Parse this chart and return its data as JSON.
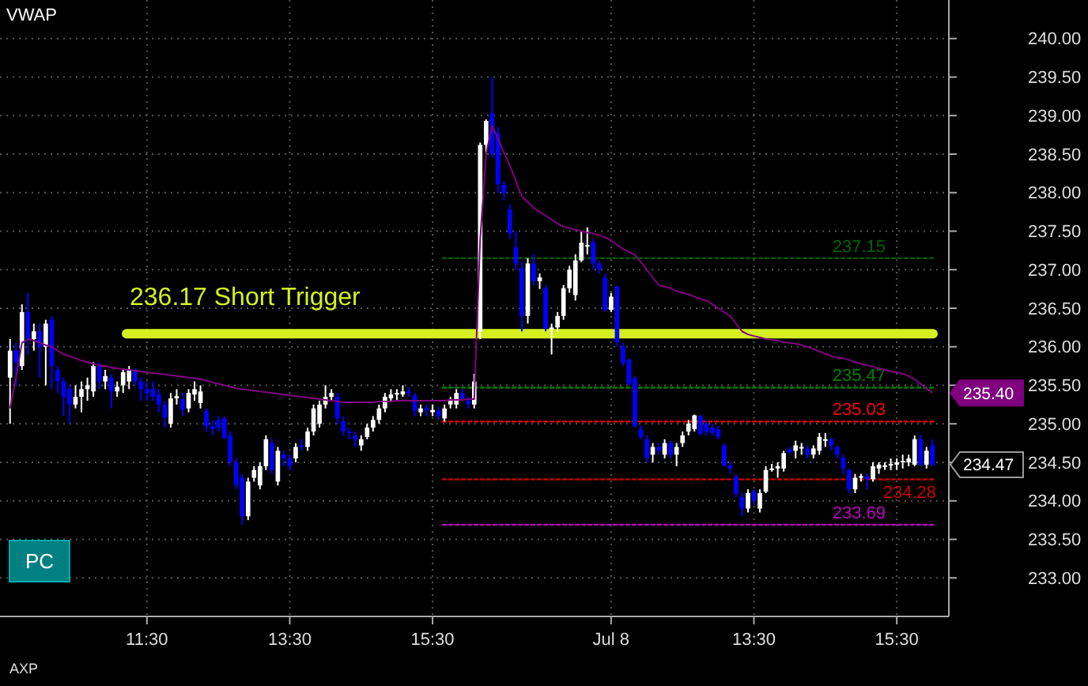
{
  "chart_data": {
    "type": "candlestick",
    "title": "VWAP",
    "categories": [
      null,
      null,
      null,
      null,
      null,
      null,
      null,
      null,
      null,
      null,
      null,
      null,
      null,
      null,
      null,
      null,
      null,
      null,
      null,
      null,
      null,
      null,
      null,
      "11:30",
      null,
      null,
      null,
      null,
      null,
      null,
      null,
      null,
      null,
      null,
      null,
      null,
      null,
      null,
      null,
      null,
      null,
      null,
      null,
      null,
      null,
      null,
      null,
      "13:30",
      null,
      null,
      null,
      null,
      null,
      null,
      null,
      null,
      null,
      null,
      null,
      null,
      null,
      null,
      null,
      null,
      null,
      null,
      null,
      null,
      null,
      null,
      null,
      "15:30",
      null,
      null,
      null,
      null,
      null,
      null,
      null,
      null,
      null,
      null,
      null,
      null,
      null,
      null,
      null,
      null,
      null,
      null,
      null,
      null,
      null,
      null,
      null,
      null,
      null,
      null,
      null,
      null,
      null,
      "Jul 8",
      null,
      null,
      null,
      null,
      null,
      null,
      null,
      null,
      null,
      null,
      null,
      null,
      null,
      null,
      null,
      null,
      null,
      null,
      null,
      null,
      null,
      null,
      null,
      "13:30",
      null,
      null,
      null,
      null,
      null,
      null,
      null,
      null,
      null,
      null,
      null,
      null,
      null,
      null,
      null,
      null,
      null,
      null,
      null,
      null,
      null,
      null,
      null,
      "15:30",
      null,
      null,
      null,
      null,
      null,
      null
    ],
    "ohlc": [
      [
        235.6,
        236.1,
        235.0,
        235.95
      ],
      [
        235.95,
        236.05,
        235.5,
        235.8
      ],
      [
        235.75,
        236.55,
        235.7,
        236.45
      ],
      [
        236.45,
        236.7,
        235.9,
        236.1
      ],
      [
        236.1,
        236.3,
        235.95,
        236.2
      ],
      [
        236.2,
        236.3,
        235.6,
        236.0
      ],
      [
        236.0,
        236.35,
        235.5,
        236.3
      ],
      [
        236.35,
        236.4,
        235.45,
        235.75
      ],
      [
        235.7,
        235.75,
        235.4,
        235.55
      ],
      [
        235.55,
        235.6,
        235.1,
        235.35
      ],
      [
        235.45,
        235.5,
        235.0,
        235.25
      ],
      [
        235.25,
        235.5,
        235.2,
        235.35
      ],
      [
        235.35,
        235.55,
        235.15,
        235.45
      ],
      [
        235.45,
        235.6,
        235.3,
        235.5
      ],
      [
        235.42,
        235.8,
        235.35,
        235.75
      ],
      [
        235.75,
        235.8,
        235.45,
        235.55
      ],
      [
        235.55,
        235.7,
        235.45,
        235.62
      ],
      [
        235.6,
        235.65,
        235.2,
        235.42
      ],
      [
        235.42,
        235.55,
        235.35,
        235.48
      ],
      [
        235.5,
        235.7,
        235.4,
        235.67
      ],
      [
        235.55,
        235.75,
        235.45,
        235.7
      ],
      [
        235.68,
        235.72,
        235.5,
        235.55
      ],
      [
        235.55,
        235.6,
        235.3,
        235.45
      ],
      [
        235.45,
        235.55,
        235.3,
        235.4
      ],
      [
        235.45,
        235.55,
        235.3,
        235.35
      ],
      [
        235.38,
        235.45,
        235.15,
        235.25
      ],
      [
        235.25,
        235.3,
        234.95,
        235.08
      ],
      [
        235.0,
        235.4,
        234.95,
        235.33
      ],
      [
        235.33,
        235.45,
        235.25,
        235.36
      ],
      [
        235.32,
        235.4,
        235.1,
        235.18
      ],
      [
        235.2,
        235.45,
        235.15,
        235.4
      ],
      [
        235.38,
        235.55,
        235.3,
        235.45
      ],
      [
        235.27,
        235.5,
        235.2,
        235.42
      ],
      [
        235.17,
        235.2,
        234.9,
        234.97
      ],
      [
        234.97,
        235.05,
        234.85,
        234.93
      ],
      [
        235.05,
        235.1,
        234.9,
        234.95
      ],
      [
        235.07,
        235.1,
        234.8,
        234.82
      ],
      [
        234.85,
        234.9,
        234.45,
        234.5
      ],
      [
        234.5,
        234.55,
        234.15,
        234.2
      ],
      [
        234.3,
        234.35,
        233.69,
        233.8
      ],
      [
        233.8,
        234.3,
        233.75,
        234.25
      ],
      [
        234.3,
        234.45,
        234.25,
        234.4
      ],
      [
        234.2,
        234.5,
        234.15,
        234.45
      ],
      [
        234.45,
        234.85,
        234.4,
        234.8
      ],
      [
        234.75,
        234.8,
        234.35,
        234.4
      ],
      [
        234.25,
        234.7,
        234.2,
        234.65
      ],
      [
        234.6,
        234.65,
        234.45,
        234.55
      ],
      [
        234.55,
        234.6,
        234.4,
        234.45
      ],
      [
        234.55,
        234.75,
        234.5,
        234.7
      ],
      [
        234.72,
        234.8,
        234.65,
        234.7
      ],
      [
        234.7,
        234.95,
        234.65,
        234.9
      ],
      [
        234.9,
        235.25,
        234.85,
        235.2
      ],
      [
        235.0,
        235.3,
        234.95,
        235.25
      ],
      [
        235.25,
        235.5,
        235.2,
        235.35
      ],
      [
        235.35,
        235.45,
        235.3,
        235.4
      ],
      [
        235.35,
        235.4,
        235.0,
        235.07
      ],
      [
        235.03,
        235.1,
        234.85,
        234.9
      ],
      [
        234.9,
        234.95,
        234.8,
        234.88
      ],
      [
        234.85,
        234.9,
        234.7,
        234.8
      ],
      [
        234.72,
        234.85,
        234.65,
        234.8
      ],
      [
        234.83,
        235.0,
        234.8,
        234.95
      ],
      [
        234.95,
        235.1,
        234.9,
        235.05
      ],
      [
        235.05,
        235.25,
        235.0,
        235.2
      ],
      [
        235.2,
        235.4,
        235.15,
        235.35
      ],
      [
        235.33,
        235.45,
        235.3,
        235.38
      ],
      [
        235.38,
        235.45,
        235.3,
        235.4
      ],
      [
        235.38,
        235.5,
        235.35,
        235.42
      ],
      [
        235.42,
        235.47,
        235.35,
        235.4
      ],
      [
        235.37,
        235.4,
        235.1,
        235.17
      ],
      [
        235.15,
        235.25,
        235.1,
        235.2
      ],
      [
        235.2,
        235.25,
        235.1,
        235.18
      ],
      [
        235.15,
        235.25,
        235.1,
        235.18
      ],
      [
        235.17,
        235.22,
        235.05,
        235.1
      ],
      [
        235.07,
        235.25,
        235.03,
        235.2
      ],
      [
        235.25,
        235.35,
        235.2,
        235.3
      ],
      [
        235.25,
        235.45,
        235.2,
        235.4
      ],
      [
        235.4,
        235.45,
        235.3,
        235.33
      ],
      [
        235.3,
        235.35,
        235.2,
        235.25
      ],
      [
        235.25,
        235.65,
        235.2,
        235.55
      ],
      [
        236.2,
        238.65,
        236.1,
        238.62
      ],
      [
        238.62,
        238.95,
        238.5,
        238.93
      ],
      [
        239.03,
        239.5,
        238.45,
        238.5
      ],
      [
        238.77,
        238.85,
        238.0,
        238.11
      ],
      [
        238.1,
        238.15,
        237.9,
        237.99
      ],
      [
        237.78,
        237.85,
        237.4,
        237.47
      ],
      [
        237.29,
        237.5,
        237.0,
        237.08
      ],
      [
        237.02,
        237.1,
        236.2,
        236.4
      ],
      [
        236.4,
        237.15,
        236.3,
        237.08
      ],
      [
        237.08,
        237.2,
        236.8,
        236.85
      ],
      [
        236.85,
        236.95,
        236.75,
        236.9
      ],
      [
        236.76,
        236.8,
        236.2,
        236.24
      ],
      [
        236.22,
        236.3,
        235.9,
        236.25
      ],
      [
        236.25,
        236.45,
        236.2,
        236.4
      ],
      [
        236.4,
        236.8,
        236.35,
        236.76
      ],
      [
        236.76,
        237.05,
        236.7,
        237.0
      ],
      [
        236.67,
        237.2,
        236.6,
        237.12
      ],
      [
        237.12,
        237.5,
        237.1,
        237.35
      ],
      [
        237.3,
        237.55,
        237.2,
        237.32
      ],
      [
        237.35,
        237.4,
        237.0,
        237.08
      ],
      [
        237.08,
        237.12,
        236.95,
        237.0
      ],
      [
        236.9,
        236.95,
        236.45,
        236.48
      ],
      [
        236.48,
        236.7,
        236.45,
        236.65
      ],
      [
        236.78,
        236.8,
        236.0,
        236.06
      ],
      [
        236.0,
        236.05,
        235.75,
        235.79
      ],
      [
        235.83,
        235.85,
        235.5,
        235.52
      ],
      [
        235.59,
        235.62,
        234.95,
        234.97
      ],
      [
        234.93,
        234.98,
        234.8,
        234.83
      ],
      [
        234.8,
        234.85,
        234.5,
        234.56
      ],
      [
        234.6,
        234.75,
        234.5,
        234.7
      ],
      [
        234.7,
        234.75,
        234.6,
        234.65
      ],
      [
        234.6,
        234.8,
        234.55,
        234.75
      ],
      [
        234.75,
        234.78,
        234.55,
        234.6
      ],
      [
        234.6,
        234.75,
        234.45,
        234.7
      ],
      [
        234.75,
        234.9,
        234.7,
        234.85
      ],
      [
        234.9,
        235.05,
        234.85,
        235.0
      ],
      [
        234.93,
        235.12,
        234.9,
        235.11
      ],
      [
        235.1,
        235.12,
        234.85,
        234.87
      ],
      [
        235.0,
        235.05,
        234.85,
        234.9
      ],
      [
        234.95,
        235.0,
        234.85,
        234.88
      ],
      [
        234.93,
        234.97,
        234.8,
        234.83
      ],
      [
        234.72,
        234.75,
        234.45,
        234.46
      ],
      [
        234.46,
        234.5,
        234.35,
        234.42
      ],
      [
        234.31,
        234.35,
        234.05,
        234.09
      ],
      [
        234.05,
        234.1,
        233.8,
        233.9
      ],
      [
        233.9,
        234.15,
        233.85,
        234.1
      ],
      [
        234.12,
        234.15,
        233.95,
        234.0
      ],
      [
        233.9,
        234.15,
        233.85,
        234.1
      ],
      [
        234.12,
        234.45,
        234.1,
        234.4
      ],
      [
        234.4,
        234.48,
        234.38,
        234.42
      ],
      [
        234.42,
        234.5,
        234.3,
        234.45
      ],
      [
        234.42,
        234.65,
        234.38,
        234.62
      ],
      [
        234.67,
        234.7,
        234.6,
        234.63
      ],
      [
        234.65,
        234.78,
        234.55,
        234.72
      ],
      [
        234.7,
        234.75,
        234.6,
        234.7
      ],
      [
        234.68,
        234.72,
        234.55,
        234.6
      ],
      [
        234.6,
        234.72,
        234.55,
        234.68
      ],
      [
        234.65,
        234.88,
        234.6,
        234.83
      ],
      [
        234.8,
        234.88,
        234.7,
        234.8
      ],
      [
        234.8,
        234.82,
        234.65,
        234.72
      ],
      [
        234.7,
        234.72,
        234.55,
        234.6
      ],
      [
        234.56,
        234.6,
        234.35,
        234.42
      ],
      [
        234.4,
        234.42,
        234.1,
        234.15
      ],
      [
        234.15,
        234.35,
        234.1,
        234.3
      ],
      [
        234.3,
        234.35,
        234.25,
        234.32
      ],
      [
        234.32,
        234.35,
        234.15,
        234.28
      ],
      [
        234.28,
        234.5,
        234.25,
        234.45
      ],
      [
        234.42,
        234.5,
        234.35,
        234.47
      ],
      [
        234.45,
        234.5,
        234.4,
        234.46
      ],
      [
        234.46,
        234.55,
        234.4,
        234.48
      ],
      [
        234.47,
        234.55,
        234.4,
        234.5
      ],
      [
        234.5,
        234.6,
        234.42,
        234.52
      ],
      [
        234.5,
        234.6,
        234.45,
        234.55
      ],
      [
        234.47,
        234.85,
        234.45,
        234.8
      ],
      [
        234.8,
        234.85,
        234.45,
        234.47
      ],
      [
        234.47,
        234.7,
        234.42,
        234.65
      ],
      [
        234.72,
        234.8,
        234.45,
        234.47
      ]
    ],
    "value_labels": [
      null,
      null,
      null,
      null,
      null,
      null,
      null,
      null,
      null,
      null,
      null,
      null,
      null,
      null,
      null,
      null,
      null,
      null,
      null,
      null,
      null,
      null,
      null,
      null,
      null,
      null,
      null,
      null,
      null,
      null,
      null,
      null,
      null,
      null,
      null,
      null,
      null,
      null,
      null,
      null,
      null,
      null,
      null,
      null,
      null,
      null,
      null,
      null,
      null,
      null,
      null,
      null,
      null,
      null,
      null,
      null,
      null,
      null,
      null,
      null,
      null,
      null,
      null,
      null,
      null,
      null,
      null,
      null,
      null,
      null,
      null,
      null,
      null,
      null,
      null,
      null,
      null,
      null,
      null,
      null,
      null,
      null,
      null,
      null,
      null,
      null,
      null,
      null,
      null,
      null,
      null,
      null,
      null,
      null,
      null,
      null,
      null,
      null,
      null,
      null,
      null,
      null,
      null,
      null,
      null,
      null,
      null,
      null,
      null,
      null,
      null,
      null,
      null,
      null,
      null,
      null,
      null,
      null,
      null,
      null,
      null,
      null,
      null,
      null,
      null,
      null,
      null,
      null,
      null,
      null,
      null,
      null,
      null,
      null,
      null,
      null,
      null,
      null,
      null,
      null,
      null,
      null,
      null,
      null,
      null,
      null,
      null,
      null,
      null,
      null,
      null,
      null,
      null,
      null,
      null,
      "234.47"
    ],
    "series": [
      {
        "type": "line",
        "color": "#800080",
        "values": [
          235.2,
          235.6,
          236.05,
          236.1,
          236.08,
          236.05,
          236.02,
          236.0,
          235.95,
          235.9,
          235.88,
          235.85,
          235.82,
          235.8,
          235.78,
          235.76,
          235.75,
          235.73,
          235.72,
          235.71,
          235.7,
          235.69,
          235.68,
          235.67,
          235.66,
          235.65,
          235.64,
          235.63,
          235.62,
          235.61,
          235.6,
          235.59,
          235.58,
          235.56,
          235.54,
          235.52,
          235.5,
          235.48,
          235.46,
          235.45,
          235.44,
          235.43,
          235.42,
          235.41,
          235.4,
          235.39,
          235.38,
          235.37,
          235.36,
          235.35,
          235.34,
          235.33,
          235.32,
          235.31,
          235.3,
          235.29,
          235.28,
          235.28,
          235.28,
          235.28,
          235.28,
          235.28,
          235.29,
          235.29,
          235.29,
          235.3,
          235.3,
          235.3,
          235.3,
          235.3,
          235.3,
          235.3,
          235.3,
          235.3,
          235.31,
          235.31,
          235.31,
          235.32,
          235.32,
          237.4,
          238.5,
          238.87,
          238.7,
          238.52,
          238.35,
          238.15,
          237.95,
          237.88,
          237.8,
          237.75,
          237.7,
          237.65,
          237.6,
          237.56,
          237.54,
          237.52,
          237.5,
          237.48,
          237.47,
          237.45,
          237.42,
          237.38,
          237.32,
          237.27,
          237.23,
          237.19,
          237.1,
          237.0,
          236.9,
          236.8,
          236.78,
          236.76,
          236.72,
          236.7,
          236.68,
          236.65,
          236.62,
          236.6,
          236.55,
          236.5,
          236.45,
          236.4,
          236.3,
          236.2,
          236.16,
          236.14,
          236.12,
          236.1,
          236.09,
          236.08,
          236.06,
          236.05,
          236.04,
          236.02,
          236.0,
          235.97,
          235.94,
          235.91,
          235.88,
          235.86,
          235.85,
          235.83,
          235.8,
          235.78,
          235.76,
          235.74,
          235.72,
          235.7,
          235.68,
          235.67,
          235.65,
          235.62,
          235.58,
          235.52,
          235.46,
          235.4
        ],
        "value_labels": [
          null,
          null,
          null,
          null,
          null,
          null,
          null,
          null,
          null,
          null,
          null,
          null,
          null,
          null,
          null,
          null,
          null,
          null,
          null,
          null,
          null,
          null,
          null,
          null,
          null,
          null,
          null,
          null,
          null,
          null,
          null,
          null,
          null,
          null,
          null,
          null,
          null,
          null,
          null,
          null,
          null,
          null,
          null,
          null,
          null,
          null,
          null,
          null,
          null,
          null,
          null,
          null,
          null,
          null,
          null,
          null,
          null,
          null,
          null,
          null,
          null,
          null,
          null,
          null,
          null,
          null,
          null,
          null,
          null,
          null,
          null,
          null,
          null,
          null,
          null,
          null,
          null,
          null,
          null,
          null,
          null,
          null,
          null,
          null,
          null,
          null,
          null,
          null,
          null,
          null,
          null,
          null,
          null,
          null,
          null,
          null,
          null,
          null,
          null,
          null,
          null,
          null,
          null,
          null,
          null,
          null,
          null,
          null,
          null,
          null,
          null,
          null,
          null,
          null,
          null,
          null,
          null,
          null,
          null,
          null,
          null,
          null,
          null,
          null,
          null,
          null,
          null,
          null,
          null,
          null,
          null,
          null,
          null,
          null,
          null,
          null,
          null,
          null,
          null,
          null,
          null,
          null,
          null,
          null,
          null,
          null,
          null,
          null,
          null,
          null,
          null,
          null,
          null,
          null,
          null,
          "235.40"
        ]
      }
    ],
    "ylim": [
      232.5,
      240.5
    ],
    "yticks": [
      {
        "value": 233,
        "label": "233.00"
      },
      {
        "value": 233.5,
        "label": "233.50"
      },
      {
        "value": 234,
        "label": "234.00"
      },
      {
        "value": 234.5,
        "label": "234.50"
      },
      {
        "value": 235,
        "label": "235.00"
      },
      {
        "value": 235.5,
        "label": "235.50"
      },
      {
        "value": 236,
        "label": "236.00"
      },
      {
        "value": 236.5,
        "label": "236.50"
      },
      {
        "value": 237,
        "label": "237.00"
      },
      {
        "value": 237.5,
        "label": "237.50"
      },
      {
        "value": 238,
        "label": "238.00"
      },
      {
        "value": 238.5,
        "label": "238.50"
      },
      {
        "value": 239,
        "label": "239.00"
      },
      {
        "value": 239.5,
        "label": "239.50"
      },
      {
        "value": 240,
        "label": "240.00"
      }
    ],
    "grid": true,
    "ref_lines": [
      {
        "axis": "y",
        "value": 236.17,
        "label": "236.17 Short Trigger",
        "color": "#d4f020",
        "line_style": "solid"
      },
      {
        "axis": "y",
        "value": 237.15,
        "label": "237.15",
        "color": "#006400",
        "line_style": "dotted"
      },
      {
        "axis": "y",
        "value": 235.47,
        "label": "235.47",
        "color": "#008000",
        "line_style": "dotted"
      },
      {
        "axis": "y",
        "value": 235.03,
        "label": "235.03",
        "color": "#ff0000",
        "line_style": "dotted"
      },
      {
        "axis": "y",
        "value": 233.69,
        "label": "233.69",
        "color": "#c000c0",
        "line_style": "dotted"
      },
      {
        "axis": "y",
        "value": 234.28,
        "label": "234.28",
        "color": "#cc0000",
        "line_style": "dotted"
      }
    ],
    "annotations": [
      "PC",
      "AXP"
    ]
  }
}
